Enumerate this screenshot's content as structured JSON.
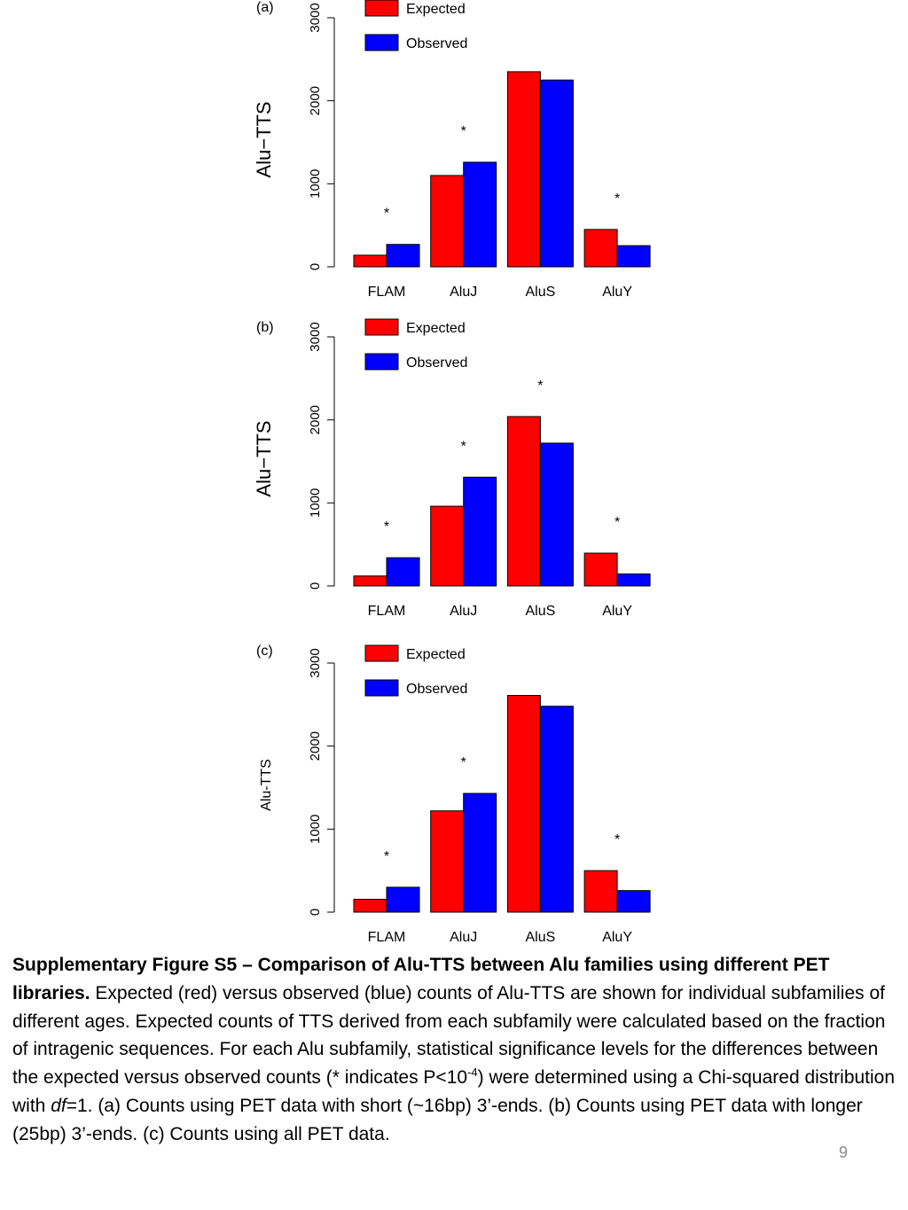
{
  "chart_data": [
    {
      "type": "bar",
      "panel_label": "(a)",
      "ylabel": "Alu−TTS",
      "categories": [
        "FLAM",
        "AluJ",
        "AluS",
        "AluY"
      ],
      "series": [
        {
          "name": "Expected",
          "color": "#ff0000",
          "values": [
            140,
            1100,
            2350,
            450
          ]
        },
        {
          "name": "Observed",
          "color": "#0000ff",
          "values": [
            270,
            1260,
            2250,
            255
          ]
        }
      ],
      "significant": [
        "*",
        "*",
        "",
        "*"
      ],
      "ylim": [
        0,
        3000
      ],
      "yticks": [
        "0",
        "1000",
        "2000",
        "3000"
      ],
      "legend": "top-left"
    },
    {
      "type": "bar",
      "panel_label": "(b)",
      "ylabel": "Alu−TTS",
      "categories": [
        "FLAM",
        "AluJ",
        "AluS",
        "AluY"
      ],
      "series": [
        {
          "name": "Expected",
          "color": "#ff0000",
          "values": [
            120,
            960,
            2040,
            395
          ]
        },
        {
          "name": "Observed",
          "color": "#0000ff",
          "values": [
            340,
            1310,
            1720,
            145
          ]
        }
      ],
      "significant": [
        "*",
        "*",
        "*",
        "*"
      ],
      "ylim": [
        0,
        3000
      ],
      "yticks": [
        "0",
        "1000",
        "2000",
        "3000"
      ],
      "legend": "top-left"
    },
    {
      "type": "bar",
      "panel_label": "(c)",
      "ylabel": "Alu-TTS",
      "categories": [
        "FLAM",
        "AluJ",
        "AluS",
        "AluY"
      ],
      "series": [
        {
          "name": "Expected",
          "color": "#ff0000",
          "values": [
            155,
            1220,
            2610,
            500
          ]
        },
        {
          "name": "Observed",
          "color": "#0000ff",
          "values": [
            300,
            1430,
            2480,
            260
          ]
        }
      ],
      "significant": [
        "*",
        "*",
        "",
        "*"
      ],
      "ylim": [
        0,
        3000
      ],
      "yticks": [
        "0",
        "1000",
        "2000",
        "3000"
      ],
      "legend": "top-left"
    }
  ],
  "caption": {
    "bold": "Supplementary Figure S5 – Comparison of Alu-TTS between Alu families using different PET libraries.",
    "text_1": " Expected (red) versus observed (blue) counts of Alu-TTS are shown for individual subfamilies of different ages.  Expected counts of TTS derived from each subfamily were calculated based on the fraction of intragenic sequences.  For each Alu subfamily, statistical significance levels for the differences between the expected versus observed counts (* indicates P<10",
    "sup": "-4",
    "text_2": ") were determined using a Chi-squared distribution with ",
    "italic": "df",
    "text_3": "=1.  (a) Counts using PET data with short (~16bp) 3’-ends.  (b) Counts using PET data with longer (25bp) 3’-ends.  (c) Counts using all PET data."
  },
  "page_number": "9"
}
